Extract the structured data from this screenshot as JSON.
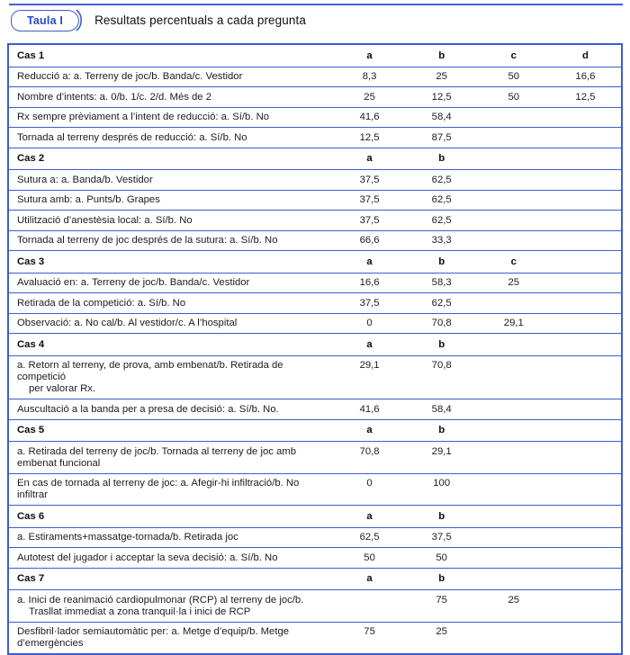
{
  "header": {
    "tag_label": "Taula I",
    "title": "Resultats percentuals a cada pregunta"
  },
  "colors": {
    "rule_blue": "#3f5cd0",
    "tag_text_blue": "#2647d0",
    "body_text": "#1c1c1c"
  },
  "table": {
    "column_letters": [
      "a",
      "b",
      "c",
      "d"
    ],
    "sections": [
      {
        "case_label": "Cas 1",
        "columns": [
          "a",
          "b",
          "c",
          "d"
        ],
        "rows": [
          {
            "label": "Reducció a: a. Terreny de joc/b. Banda/c. Vestidor",
            "values": [
              "8,3",
              "25",
              "50",
              "16,6"
            ]
          },
          {
            "label": "Nombre d’intents: a. 0/b. 1/c. 2/d. Més de 2",
            "values": [
              "25",
              "12,5",
              "50",
              "12,5"
            ]
          },
          {
            "label": "Rx sempre prèviament a l’intent de reducció: a. Sí/b. No",
            "values": [
              "41,6",
              "58,4",
              "",
              ""
            ]
          },
          {
            "label": "Tornada al terreny després de reducció: a. Sí/b. No",
            "values": [
              "12,5",
              "87,5",
              "",
              ""
            ]
          }
        ]
      },
      {
        "case_label": "Cas 2",
        "columns": [
          "a",
          "b"
        ],
        "rows": [
          {
            "label": "Sutura a: a. Banda/b. Vestidor",
            "values": [
              "37,5",
              "62,5",
              "",
              ""
            ]
          },
          {
            "label": "Sutura amb: a. Punts/b. Grapes",
            "values": [
              "37,5",
              "62,5",
              "",
              ""
            ]
          },
          {
            "label": "Utilització d’anestèsia local: a. Sí/b. No",
            "values": [
              "37,5",
              "62,5",
              "",
              ""
            ]
          },
          {
            "label": "Tornada al terreny de joc després de la sutura: a. Sí/b. No",
            "values": [
              "66,6",
              "33,3",
              "",
              ""
            ]
          }
        ]
      },
      {
        "case_label": "Cas 3",
        "columns": [
          "a",
          "b",
          "c"
        ],
        "rows": [
          {
            "label": "Avaluació en: a. Terreny de joc/b. Banda/c. Vestidor",
            "values": [
              "16,6",
              "58,3",
              "25",
              ""
            ]
          },
          {
            "label": "Retirada de la competició: a. Sí/b. No",
            "values": [
              "37,5",
              "62,5",
              "",
              ""
            ]
          },
          {
            "label": "Observació: a. No cal/b. Al vestidor/c. A l’hospital",
            "values": [
              "0",
              "70,8",
              "29,1",
              ""
            ]
          }
        ]
      },
      {
        "case_label": "Cas 4",
        "columns": [
          "a",
          "b"
        ],
        "rows": [
          {
            "label": "a. Retorn al terreny, de prova, amb embenat/b. Retirada de competició",
            "label2": "per valorar Rx.",
            "values": [
              "29,1",
              "70,8",
              "",
              ""
            ]
          },
          {
            "label": "Auscultació a la banda per a presa de decisió: a. Sí/b. No.",
            "values": [
              "41,6",
              "58,4",
              "",
              ""
            ]
          }
        ]
      },
      {
        "case_label": "Cas 5",
        "columns": [
          "a",
          "b"
        ],
        "rows": [
          {
            "label": "a. Retirada del terreny de joc/b. Tornada al terreny de joc amb embenat funcional",
            "values": [
              "70,8",
              "29,1",
              "",
              ""
            ]
          },
          {
            "label": "En cas de tornada al terreny de joc: a. Afegir-hi infiltració/b. No infiltrar",
            "values": [
              "0",
              "100",
              "",
              ""
            ]
          }
        ]
      },
      {
        "case_label": "Cas 6",
        "columns": [
          "a",
          "b"
        ],
        "rows": [
          {
            "label": "a. Estiraments+massatge-tornada/b. Retirada joc",
            "values": [
              "62,5",
              "37,5",
              "",
              ""
            ]
          },
          {
            "label": "Autotest del jugador i acceptar la seva decisió: a. Sí/b. No",
            "values": [
              "50",
              "50",
              "",
              ""
            ]
          }
        ]
      },
      {
        "case_label": "Cas 7",
        "columns": [
          "a",
          "b"
        ],
        "rows": [
          {
            "label": "a. Inici de reanimació cardiopulmonar (RCP) al terreny de joc/b.",
            "label2": "Trasllat immediat a zona tranquil·la i inici de RCP",
            "values": [
              "",
              "75",
              "25",
              ""
            ]
          },
          {
            "label": "Desfibril·lador semiautomàtic per: a. Metge d’equip/b. Metge d’emergències",
            "values": [
              "75",
              "25",
              "",
              ""
            ]
          }
        ]
      }
    ]
  }
}
